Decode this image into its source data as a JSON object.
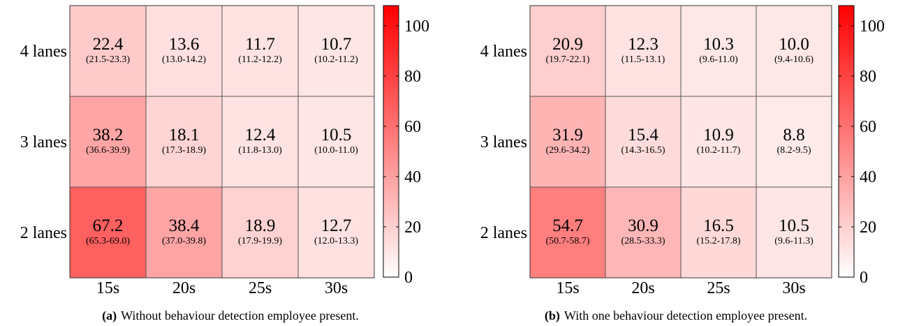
{
  "chart_data": [
    {
      "type": "heatmap",
      "caption_label": "(a)",
      "caption_text": "Without behaviour detection employee present.",
      "rows": [
        "4 lanes",
        "3 lanes",
        "2 lanes"
      ],
      "columns": [
        "15s",
        "20s",
        "25s",
        "30s"
      ],
      "values": [
        [
          22.4,
          13.6,
          11.7,
          10.7
        ],
        [
          38.2,
          18.1,
          12.4,
          10.5
        ],
        [
          67.2,
          38.4,
          18.9,
          12.7
        ]
      ],
      "intervals": [
        [
          "(21.5-23.3)",
          "(13.0-14.2)",
          "(11.2-12.2)",
          "(10.2-11.2)"
        ],
        [
          "(36.6-39.9)",
          "(17.3-18.9)",
          "(11.8-13.0)",
          "(10.0-11.0)"
        ],
        [
          "(65.3-69.0)",
          "(37.0-39.8)",
          "(17.9-19.9)",
          "(12.0-13.3)"
        ]
      ],
      "colorbar": {
        "range": [
          0,
          108
        ],
        "ticks": [
          0,
          20,
          40,
          60,
          80,
          100
        ],
        "low_color": "#ffffff",
        "high_color": "#ff0000"
      }
    },
    {
      "type": "heatmap",
      "caption_label": "(b)",
      "caption_text": "With one behaviour detection employee present.",
      "rows": [
        "4 lanes",
        "3 lanes",
        "2 lanes"
      ],
      "columns": [
        "15s",
        "20s",
        "25s",
        "30s"
      ],
      "values": [
        [
          20.9,
          12.3,
          10.3,
          10.0
        ],
        [
          31.9,
          15.4,
          10.9,
          8.8
        ],
        [
          54.7,
          30.9,
          16.5,
          10.5
        ]
      ],
      "intervals": [
        [
          "(19.7-22.1)",
          "(11.5-13.1)",
          "(9.6-11.0)",
          "(9.4-10.6)"
        ],
        [
          "(29.6-34.2)",
          "(14.3-16.5)",
          "(10.2-11.7)",
          "(8.2-9.5)"
        ],
        [
          "(50.7-58.7)",
          "(28.5-33.3)",
          "(15.2-17.8)",
          "(9.6-11.3)"
        ]
      ],
      "colorbar": {
        "range": [
          0,
          108
        ],
        "ticks": [
          0,
          20,
          40,
          60,
          80,
          100
        ],
        "low_color": "#ffffff",
        "high_color": "#ff0000"
      }
    }
  ]
}
